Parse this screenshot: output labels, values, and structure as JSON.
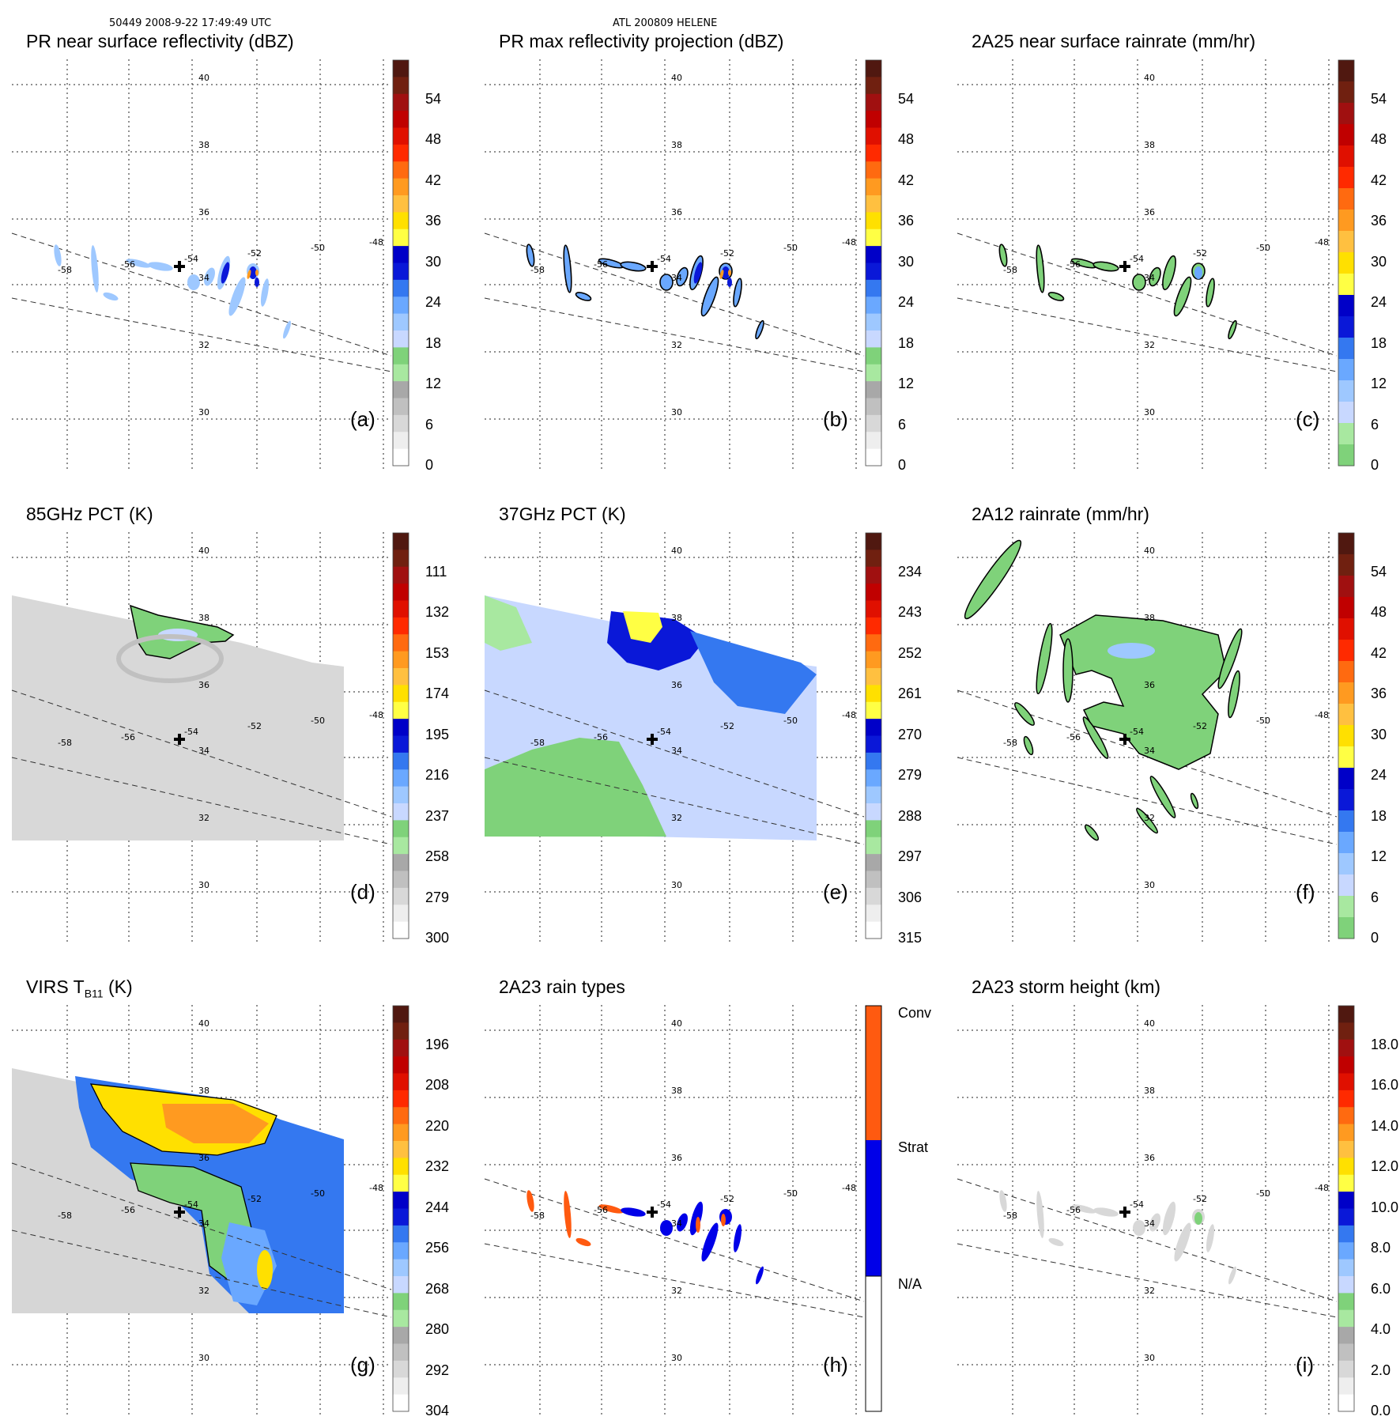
{
  "header": {
    "left": "50449 2008-9-22 17:49:49 UTC",
    "center": "ATL 200809 HELENE"
  },
  "lat_labels": [
    "40",
    "38",
    "36",
    "34",
    "32",
    "30"
  ],
  "lon_labels": [
    "-58",
    "-56",
    "-54",
    "-52",
    "-50",
    "-48"
  ],
  "colors": {
    "gray": [
      "#ffffff",
      "#eeeeee",
      "#d8d8d8",
      "#c0c0c0",
      "#a8a8a8"
    ],
    "green": [
      "#a8e8a0",
      "#7fd27a"
    ],
    "blue": [
      "#c8d8ff",
      "#9ec8ff",
      "#6aa8ff",
      "#3478f0",
      "#0a18d8",
      "#0000c8"
    ],
    "yellow": [
      "#ffff44",
      "#ffe000"
    ],
    "orange": [
      "#ffc040",
      "#ff9a20",
      "#ff6a10"
    ],
    "red": [
      "#ff2a00",
      "#e01000",
      "#c00000",
      "#a01010",
      "#702010",
      "#501810"
    ],
    "raintype": [
      "#ffffff",
      "#0000e8",
      "#ff5a10"
    ]
  },
  "panels": [
    {
      "id": "a",
      "title": "PR near surface reflectivity (dBZ)",
      "label": "(a)",
      "ticks": [
        "54",
        "48",
        "42",
        "36",
        "30",
        "24",
        "18",
        "12",
        "6",
        "0"
      ],
      "cb": "std"
    },
    {
      "id": "b",
      "title": "PR max reflectivity projection (dBZ)",
      "label": "(b)",
      "ticks": [
        "54",
        "48",
        "42",
        "36",
        "30",
        "24",
        "18",
        "12",
        "6",
        "0"
      ],
      "cb": "std"
    },
    {
      "id": "c",
      "title": "2A25 near surface rainrate (mm/hr)",
      "label": "(c)",
      "ticks": [
        "54",
        "48",
        "42",
        "36",
        "30",
        "24",
        "18",
        "12",
        "6",
        "0"
      ],
      "cb": "rain"
    },
    {
      "id": "d",
      "title": "85GHz PCT (K)",
      "label": "(d)",
      "ticks": [
        "111",
        "132",
        "153",
        "174",
        "195",
        "216",
        "237",
        "258",
        "279",
        "300"
      ],
      "cb": "std"
    },
    {
      "id": "e",
      "title": "37GHz PCT (K)",
      "label": "(e)",
      "ticks": [
        "234",
        "243",
        "252",
        "261",
        "270",
        "279",
        "288",
        "297",
        "306",
        "315"
      ],
      "cb": "std"
    },
    {
      "id": "f",
      "title": "2A12 rainrate (mm/hr)",
      "label": "(f)",
      "ticks": [
        "54",
        "48",
        "42",
        "36",
        "30",
        "24",
        "18",
        "12",
        "6",
        "0"
      ],
      "cb": "rain"
    },
    {
      "id": "g",
      "title": "VIRS T",
      "title_sub": "B11",
      "title_suffix": " (K)",
      "label": "(g)",
      "ticks": [
        "196",
        "208",
        "220",
        "232",
        "244",
        "256",
        "268",
        "280",
        "292",
        "304"
      ],
      "cb": "std"
    },
    {
      "id": "h",
      "title": "2A23 rain types",
      "label": "(h)",
      "ticks": [
        "Conv",
        "Strat",
        "N/A"
      ],
      "cb": "raintype"
    },
    {
      "id": "i",
      "title": "2A23 storm height (km)",
      "label": "(i)",
      "ticks": [
        "18.0",
        "16.0",
        "14.0",
        "12.0",
        "10.0",
        "8.0",
        "6.0",
        "4.0",
        "2.0",
        "0.0"
      ],
      "cb": "std"
    }
  ]
}
